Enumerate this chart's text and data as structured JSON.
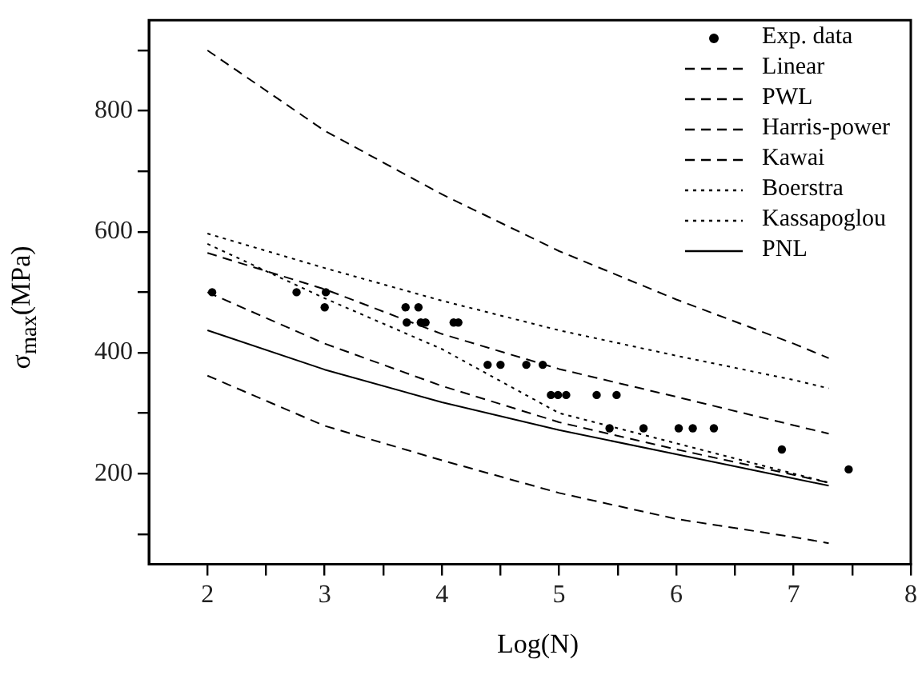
{
  "chart_data": {
    "type": "line",
    "xlabel": "Log(N)",
    "ylabel": "σ$_{max}$(MPa)",
    "xlim": [
      1.5,
      8
    ],
    "ylim": [
      50,
      950
    ],
    "xticks": [
      2,
      {
        "value": 2.5,
        "label": null
      },
      3,
      {
        "value": 3.5,
        "label": null
      },
      4,
      {
        "value": 4.5,
        "label": null
      },
      5,
      {
        "value": 5.5,
        "label": null
      },
      6,
      {
        "value": 6.5,
        "label": null
      },
      7,
      {
        "value": 7.5,
        "label": null
      },
      8
    ],
    "yticks": [
      {
        "value": 100,
        "label": null
      },
      200,
      {
        "value": 300,
        "label": null
      },
      400,
      {
        "value": 500,
        "label": null
      },
      600,
      {
        "value": 700,
        "label": null
      },
      800,
      {
        "value": 900,
        "label": null
      }
    ],
    "grid": false,
    "legend": "top right",
    "series": [
      {
        "name": "Exp. data",
        "type": "scatter",
        "marker": "circle",
        "color": "#000000",
        "x": [
          2.04,
          2.76,
          3.01,
          3.0,
          3.69,
          3.8,
          3.7,
          3.82,
          3.86,
          4.1,
          4.14,
          4.39,
          4.5,
          4.72,
          4.86,
          4.93,
          4.99,
          5.06,
          5.32,
          5.49,
          5.43,
          5.72,
          6.02,
          6.14,
          6.32,
          6.9,
          7.47
        ],
        "values": [
          500,
          500,
          500,
          475,
          475,
          475,
          450,
          450,
          450,
          450,
          450,
          380,
          380,
          380,
          380,
          330,
          330,
          330,
          330,
          330,
          275,
          275,
          275,
          275,
          275,
          240,
          207
        ]
      },
      {
        "name": "Linear",
        "type": "line",
        "line_style": "dashed",
        "marker": "none",
        "color": "#000000",
        "x": [
          2,
          3,
          4,
          5,
          6,
          7,
          7.3
        ],
        "values": [
          362,
          279,
          222,
          168,
          125,
          95,
          85
        ]
      },
      {
        "name": "PWL",
        "type": "line",
        "line_style": "dashed",
        "marker": "none",
        "color": "#000000",
        "x": [
          2,
          3,
          4,
          5,
          6,
          7,
          7.3
        ],
        "values": [
          565,
          505,
          431,
          373,
          327,
          280,
          266
        ]
      },
      {
        "name": "Harris-power",
        "type": "line",
        "line_style": "dashed",
        "marker": "none",
        "color": "#000000",
        "x": [
          2,
          3,
          4,
          5,
          6,
          7,
          7.3
        ],
        "values": [
          500,
          415,
          345,
          285,
          240,
          198,
          185
        ]
      },
      {
        "name": "Kawai",
        "type": "line",
        "line_style": "dashed",
        "marker": "none",
        "color": "#000000",
        "x": [
          2,
          3,
          4,
          5,
          6,
          7,
          7.3
        ],
        "values": [
          900,
          767,
          662,
          568,
          488,
          415,
          391
        ]
      },
      {
        "name": "Boerstra",
        "type": "line",
        "line_style": "dotted",
        "marker": "none",
        "color": "#000000",
        "x": [
          2,
          3,
          4,
          5,
          6,
          7,
          7.3
        ],
        "values": [
          580,
          490,
          406,
          300,
          250,
          200,
          185
        ]
      },
      {
        "name": "Kassapoglou",
        "type": "line",
        "line_style": "dotted",
        "marker": "none",
        "color": "#000000",
        "x": [
          2,
          3,
          4,
          5,
          6,
          7,
          7.3
        ],
        "values": [
          597,
          540,
          486,
          437,
          395,
          355,
          341
        ]
      },
      {
        "name": "PNL",
        "type": "line",
        "line_style": "solid",
        "marker": "none",
        "color": "#000000",
        "x": [
          2,
          3,
          4,
          5,
          6,
          7,
          7.3
        ],
        "values": [
          437,
          372,
          318,
          272,
          232,
          192,
          180
        ]
      }
    ]
  }
}
